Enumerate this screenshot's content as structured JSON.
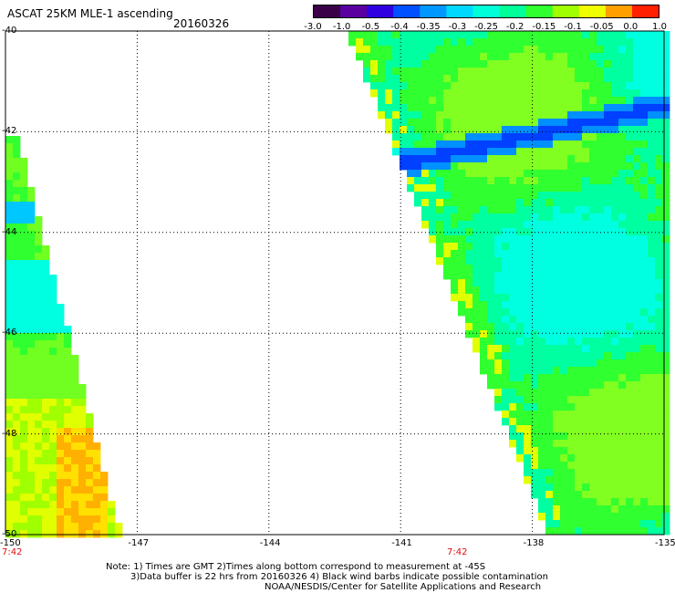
{
  "header": {
    "title": "ASCAT 25KM MLE-1 ascending",
    "date": "20160326"
  },
  "colorbar": {
    "labels": [
      "-3.0",
      "-1.0",
      "-0.5",
      "-0.4",
      "-0.35",
      "-0.3",
      "-0.25",
      "-0.2",
      "-0.15",
      "-0.1",
      "-0.05",
      "0.0",
      "1.0"
    ],
    "colors": [
      "#3a0048",
      "#5a00a0",
      "#3000e0",
      "#0050ff",
      "#0098ff",
      "#00d8ff",
      "#00ffd8",
      "#00ff98",
      "#30ff30",
      "#a0ff00",
      "#f0ff00",
      "#ffa000",
      "#ff2000"
    ]
  },
  "axes": {
    "lat_labels": [
      "-40",
      "-42",
      "-44",
      "-46",
      "-48",
      "-50"
    ],
    "lon_labels": [
      "-150",
      "-147",
      "-144",
      "-141",
      "-138",
      "-135"
    ],
    "lon_range": [
      -150,
      -135
    ],
    "lat_range": [
      -40,
      -50
    ]
  },
  "times": {
    "left": "7:42",
    "mid": "7:42"
  },
  "notes": {
    "line1": "Note: 1) Times are GMT 2)Times along bottom correspond to measurement at -45S",
    "line2": "3)Data buffer is 22 hrs from 20160326 4) Black wind barbs indicate possible contamination",
    "line3": "NOAA/NESDIS/Center for Satellite Applications and Research"
  }
}
